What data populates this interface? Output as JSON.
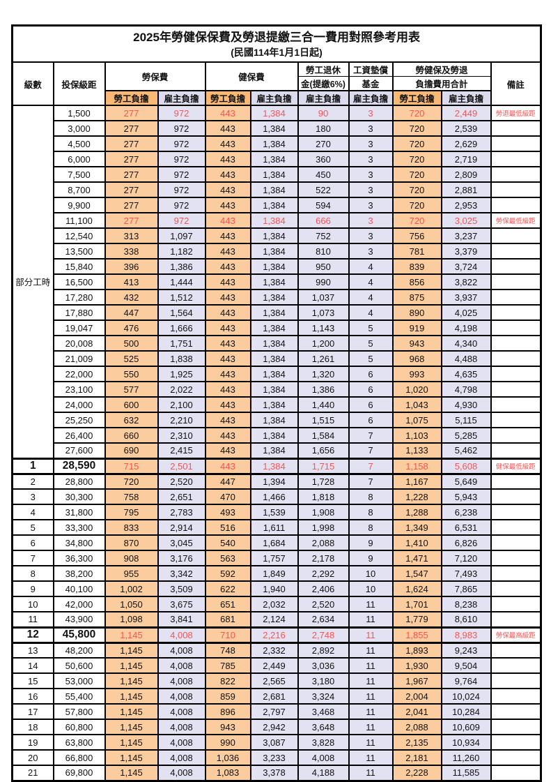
{
  "title": "2025年勞健保保費及勞退提繳三合一費用對照參考用表",
  "subtitle": "(民國114年1月1日起)",
  "header": {
    "level": "級數",
    "bracket": "投保級距",
    "labor_insurance": "勞保費",
    "health_insurance": "健保費",
    "pension_l1": "勞工退休",
    "pension_l2": "金(提繳6%)",
    "fund_l1": "工資墊償",
    "fund_l2": "基金",
    "total_l1": "勞健保及勞退",
    "total_l2": "負擔費用合計",
    "remark": "備註",
    "employee_label": "勞工負擔",
    "employer_label": "雇主負擔",
    "part_time_label": "部分工時"
  },
  "part_time_rowspan": 23,
  "colors": {
    "employee_header_bg": "#F9B873",
    "employee_cell_bg": "#FBCC9E",
    "employer_header_bg": "#DCDBEE",
    "employer_cell_bg": "#E3E2F2",
    "highlight_text": "#F95454",
    "grid": "#000000"
  },
  "rows": [
    {
      "level": "",
      "bracket": "1,500",
      "cells": [
        "277",
        "972",
        "443",
        "1,384",
        "90",
        "3",
        "720",
        "2,449"
      ],
      "remark": "勞退最低級距",
      "red": true,
      "key": false
    },
    {
      "level": "",
      "bracket": "3,000",
      "cells": [
        "277",
        "972",
        "443",
        "1,384",
        "180",
        "3",
        "720",
        "2,539"
      ],
      "remark": "",
      "red": false,
      "key": false
    },
    {
      "level": "",
      "bracket": "4,500",
      "cells": [
        "277",
        "972",
        "443",
        "1,384",
        "270",
        "3",
        "720",
        "2,629"
      ],
      "remark": "",
      "red": false,
      "key": false
    },
    {
      "level": "",
      "bracket": "6,000",
      "cells": [
        "277",
        "972",
        "443",
        "1,384",
        "360",
        "3",
        "720",
        "2,719"
      ],
      "remark": "",
      "red": false,
      "key": false
    },
    {
      "level": "",
      "bracket": "7,500",
      "cells": [
        "277",
        "972",
        "443",
        "1,384",
        "450",
        "3",
        "720",
        "2,809"
      ],
      "remark": "",
      "red": false,
      "key": false
    },
    {
      "level": "",
      "bracket": "8,700",
      "cells": [
        "277",
        "972",
        "443",
        "1,384",
        "522",
        "3",
        "720",
        "2,881"
      ],
      "remark": "",
      "red": false,
      "key": false
    },
    {
      "level": "",
      "bracket": "9,900",
      "cells": [
        "277",
        "972",
        "443",
        "1,384",
        "594",
        "3",
        "720",
        "2,953"
      ],
      "remark": "",
      "red": false,
      "key": false
    },
    {
      "level": "",
      "bracket": "11,100",
      "cells": [
        "277",
        "972",
        "443",
        "1,384",
        "666",
        "3",
        "720",
        "3,025"
      ],
      "remark": "勞保最低級距",
      "red": true,
      "key": false
    },
    {
      "level": "",
      "bracket": "12,540",
      "cells": [
        "313",
        "1,097",
        "443",
        "1,384",
        "752",
        "3",
        "756",
        "3,237"
      ],
      "remark": "",
      "red": false,
      "key": false
    },
    {
      "level": "",
      "bracket": "13,500",
      "cells": [
        "338",
        "1,182",
        "443",
        "1,384",
        "810",
        "3",
        "781",
        "3,379"
      ],
      "remark": "",
      "red": false,
      "key": false
    },
    {
      "level": "",
      "bracket": "15,840",
      "cells": [
        "396",
        "1,386",
        "443",
        "1,384",
        "950",
        "4",
        "839",
        "3,724"
      ],
      "remark": "",
      "red": false,
      "key": false
    },
    {
      "level": "",
      "bracket": "16,500",
      "cells": [
        "413",
        "1,444",
        "443",
        "1,384",
        "990",
        "4",
        "856",
        "3,822"
      ],
      "remark": "",
      "red": false,
      "key": false
    },
    {
      "level": "",
      "bracket": "17,280",
      "cells": [
        "432",
        "1,512",
        "443",
        "1,384",
        "1,037",
        "4",
        "875",
        "3,937"
      ],
      "remark": "",
      "red": false,
      "key": false
    },
    {
      "level": "",
      "bracket": "17,880",
      "cells": [
        "447",
        "1,564",
        "443",
        "1,384",
        "1,073",
        "4",
        "890",
        "4,025"
      ],
      "remark": "",
      "red": false,
      "key": false
    },
    {
      "level": "",
      "bracket": "19,047",
      "cells": [
        "476",
        "1,666",
        "443",
        "1,384",
        "1,143",
        "5",
        "919",
        "4,198"
      ],
      "remark": "",
      "red": false,
      "key": false
    },
    {
      "level": "",
      "bracket": "20,008",
      "cells": [
        "500",
        "1,751",
        "443",
        "1,384",
        "1,200",
        "5",
        "943",
        "4,340"
      ],
      "remark": "",
      "red": false,
      "key": false
    },
    {
      "level": "",
      "bracket": "21,009",
      "cells": [
        "525",
        "1,838",
        "443",
        "1,384",
        "1,261",
        "5",
        "968",
        "4,488"
      ],
      "remark": "",
      "red": false,
      "key": false
    },
    {
      "level": "",
      "bracket": "22,000",
      "cells": [
        "550",
        "1,925",
        "443",
        "1,384",
        "1,320",
        "6",
        "993",
        "4,635"
      ],
      "remark": "",
      "red": false,
      "key": false
    },
    {
      "level": "",
      "bracket": "23,100",
      "cells": [
        "577",
        "2,022",
        "443",
        "1,384",
        "1,386",
        "6",
        "1,020",
        "4,798"
      ],
      "remark": "",
      "red": false,
      "key": false
    },
    {
      "level": "",
      "bracket": "24,000",
      "cells": [
        "600",
        "2,100",
        "443",
        "1,384",
        "1,440",
        "6",
        "1,043",
        "4,930"
      ],
      "remark": "",
      "red": false,
      "key": false
    },
    {
      "level": "",
      "bracket": "25,250",
      "cells": [
        "632",
        "2,210",
        "443",
        "1,384",
        "1,515",
        "6",
        "1,075",
        "5,115"
      ],
      "remark": "",
      "red": false,
      "key": false
    },
    {
      "level": "",
      "bracket": "26,400",
      "cells": [
        "660",
        "2,310",
        "443",
        "1,384",
        "1,584",
        "7",
        "1,103",
        "5,285"
      ],
      "remark": "",
      "red": false,
      "key": false
    },
    {
      "level": "",
      "bracket": "27,600",
      "cells": [
        "690",
        "2,415",
        "443",
        "1,384",
        "1,656",
        "7",
        "1,133",
        "5,462"
      ],
      "remark": "",
      "red": false,
      "key": false
    },
    {
      "level": "1",
      "bracket": "28,590",
      "cells": [
        "715",
        "2,501",
        "443",
        "1,384",
        "1,715",
        "7",
        "1,158",
        "5,608"
      ],
      "remark": "健保最低級距",
      "red": true,
      "key": true
    },
    {
      "level": "2",
      "bracket": "28,800",
      "cells": [
        "720",
        "2,520",
        "447",
        "1,394",
        "1,728",
        "7",
        "1,167",
        "5,649"
      ],
      "remark": "",
      "red": false,
      "key": false
    },
    {
      "level": "3",
      "bracket": "30,300",
      "cells": [
        "758",
        "2,651",
        "470",
        "1,466",
        "1,818",
        "8",
        "1,228",
        "5,943"
      ],
      "remark": "",
      "red": false,
      "key": false
    },
    {
      "level": "4",
      "bracket": "31,800",
      "cells": [
        "795",
        "2,783",
        "493",
        "1,539",
        "1,908",
        "8",
        "1,288",
        "6,238"
      ],
      "remark": "",
      "red": false,
      "key": false
    },
    {
      "level": "5",
      "bracket": "33,300",
      "cells": [
        "833",
        "2,914",
        "516",
        "1,611",
        "1,998",
        "8",
        "1,349",
        "6,531"
      ],
      "remark": "",
      "red": false,
      "key": false
    },
    {
      "level": "6",
      "bracket": "34,800",
      "cells": [
        "870",
        "3,045",
        "540",
        "1,684",
        "2,088",
        "9",
        "1,410",
        "6,826"
      ],
      "remark": "",
      "red": false,
      "key": false
    },
    {
      "level": "7",
      "bracket": "36,300",
      "cells": [
        "908",
        "3,176",
        "563",
        "1,757",
        "2,178",
        "9",
        "1,471",
        "7,120"
      ],
      "remark": "",
      "red": false,
      "key": false
    },
    {
      "level": "8",
      "bracket": "38,200",
      "cells": [
        "955",
        "3,342",
        "592",
        "1,849",
        "2,292",
        "10",
        "1,547",
        "7,493"
      ],
      "remark": "",
      "red": false,
      "key": false
    },
    {
      "level": "9",
      "bracket": "40,100",
      "cells": [
        "1,002",
        "3,509",
        "622",
        "1,940",
        "2,406",
        "10",
        "1,624",
        "7,865"
      ],
      "remark": "",
      "red": false,
      "key": false
    },
    {
      "level": "10",
      "bracket": "42,000",
      "cells": [
        "1,050",
        "3,675",
        "651",
        "2,032",
        "2,520",
        "11",
        "1,701",
        "8,238"
      ],
      "remark": "",
      "red": false,
      "key": false
    },
    {
      "level": "11",
      "bracket": "43,900",
      "cells": [
        "1,098",
        "3,841",
        "681",
        "2,124",
        "2,634",
        "11",
        "1,779",
        "8,610"
      ],
      "remark": "",
      "red": false,
      "key": false
    },
    {
      "level": "12",
      "bracket": "45,800",
      "cells": [
        "1,145",
        "4,008",
        "710",
        "2,216",
        "2,748",
        "11",
        "1,855",
        "8,983"
      ],
      "remark": "勞保最高級距",
      "red": true,
      "key": true
    },
    {
      "level": "13",
      "bracket": "48,200",
      "cells": [
        "1,145",
        "4,008",
        "748",
        "2,332",
        "2,892",
        "11",
        "1,893",
        "9,243"
      ],
      "remark": "",
      "red": false,
      "key": false
    },
    {
      "level": "14",
      "bracket": "50,600",
      "cells": [
        "1,145",
        "4,008",
        "785",
        "2,449",
        "3,036",
        "11",
        "1,930",
        "9,504"
      ],
      "remark": "",
      "red": false,
      "key": false
    },
    {
      "level": "15",
      "bracket": "53,000",
      "cells": [
        "1,145",
        "4,008",
        "822",
        "2,565",
        "3,180",
        "11",
        "1,967",
        "9,764"
      ],
      "remark": "",
      "red": false,
      "key": false
    },
    {
      "level": "16",
      "bracket": "55,400",
      "cells": [
        "1,145",
        "4,008",
        "859",
        "2,681",
        "3,324",
        "11",
        "2,004",
        "10,024"
      ],
      "remark": "",
      "red": false,
      "key": false
    },
    {
      "level": "17",
      "bracket": "57,800",
      "cells": [
        "1,145",
        "4,008",
        "896",
        "2,797",
        "3,468",
        "11",
        "2,041",
        "10,284"
      ],
      "remark": "",
      "red": false,
      "key": false
    },
    {
      "level": "18",
      "bracket": "60,800",
      "cells": [
        "1,145",
        "4,008",
        "943",
        "2,942",
        "3,648",
        "11",
        "2,088",
        "10,609"
      ],
      "remark": "",
      "red": false,
      "key": false
    },
    {
      "level": "19",
      "bracket": "63,800",
      "cells": [
        "1,145",
        "4,008",
        "990",
        "3,087",
        "3,828",
        "11",
        "2,135",
        "10,934"
      ],
      "remark": "",
      "red": false,
      "key": false
    },
    {
      "level": "20",
      "bracket": "66,800",
      "cells": [
        "1,145",
        "4,008",
        "1,036",
        "3,233",
        "4,008",
        "11",
        "2,181",
        "11,260"
      ],
      "remark": "",
      "red": false,
      "key": false
    },
    {
      "level": "21",
      "bracket": "69,800",
      "cells": [
        "1,145",
        "4,008",
        "1,083",
        "3,378",
        "4,188",
        "11",
        "2,228",
        "11,585"
      ],
      "remark": "",
      "red": false,
      "key": false
    }
  ]
}
